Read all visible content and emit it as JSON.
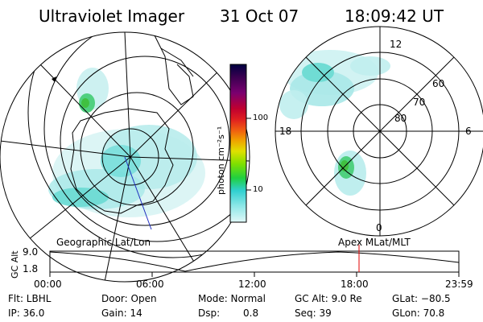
{
  "header": {
    "title": "Ultraviolet Imager",
    "date": "31 Oct 07",
    "time": "18:09:42 UT"
  },
  "colorbar": {
    "unit_label": "photon cm⁻²s⁻¹",
    "ticks": [
      "100",
      "10"
    ],
    "scale": "log",
    "colors": [
      "#000040",
      "#3a0050",
      "#7a0070",
      "#c00030",
      "#e02020",
      "#f06010",
      "#f0a000",
      "#e0e000",
      "#80e000",
      "#20d040",
      "#30d0d0",
      "#90e8e8",
      "#e0f8f8"
    ]
  },
  "left_panel": {
    "caption": "Geographic Lat/Lon",
    "projection": "geographic-polar"
  },
  "right_panel": {
    "caption": "Apex MLat/MLT",
    "mlt_labels": {
      "top": "12",
      "left": "18",
      "right": "6",
      "bottom": "0"
    },
    "lat_labels": [
      "60",
      "70",
      "80"
    ]
  },
  "timeline": {
    "y_axis_label": "GC Alt",
    "y_ticks": [
      "9.0",
      "1.8"
    ],
    "x_ticks": [
      "00:00",
      "06:00",
      "12:00",
      "18:00",
      "23:59"
    ],
    "marker_color": "#e00000"
  },
  "footer": {
    "row1": {
      "flt": "Flt: LBHL",
      "door": "Door: Open",
      "mode": "Mode: Normal",
      "gcalt": "GC Alt: 9.0 Re",
      "glat": "GLat: −80.5"
    },
    "row2": {
      "ip": "IP: 36.0",
      "gain": "Gain: 14",
      "dsp_label": "Dsp:",
      "dsp_value": "0.8",
      "seq": "Seq: 39",
      "glon": "GLon: 70.8"
    }
  }
}
